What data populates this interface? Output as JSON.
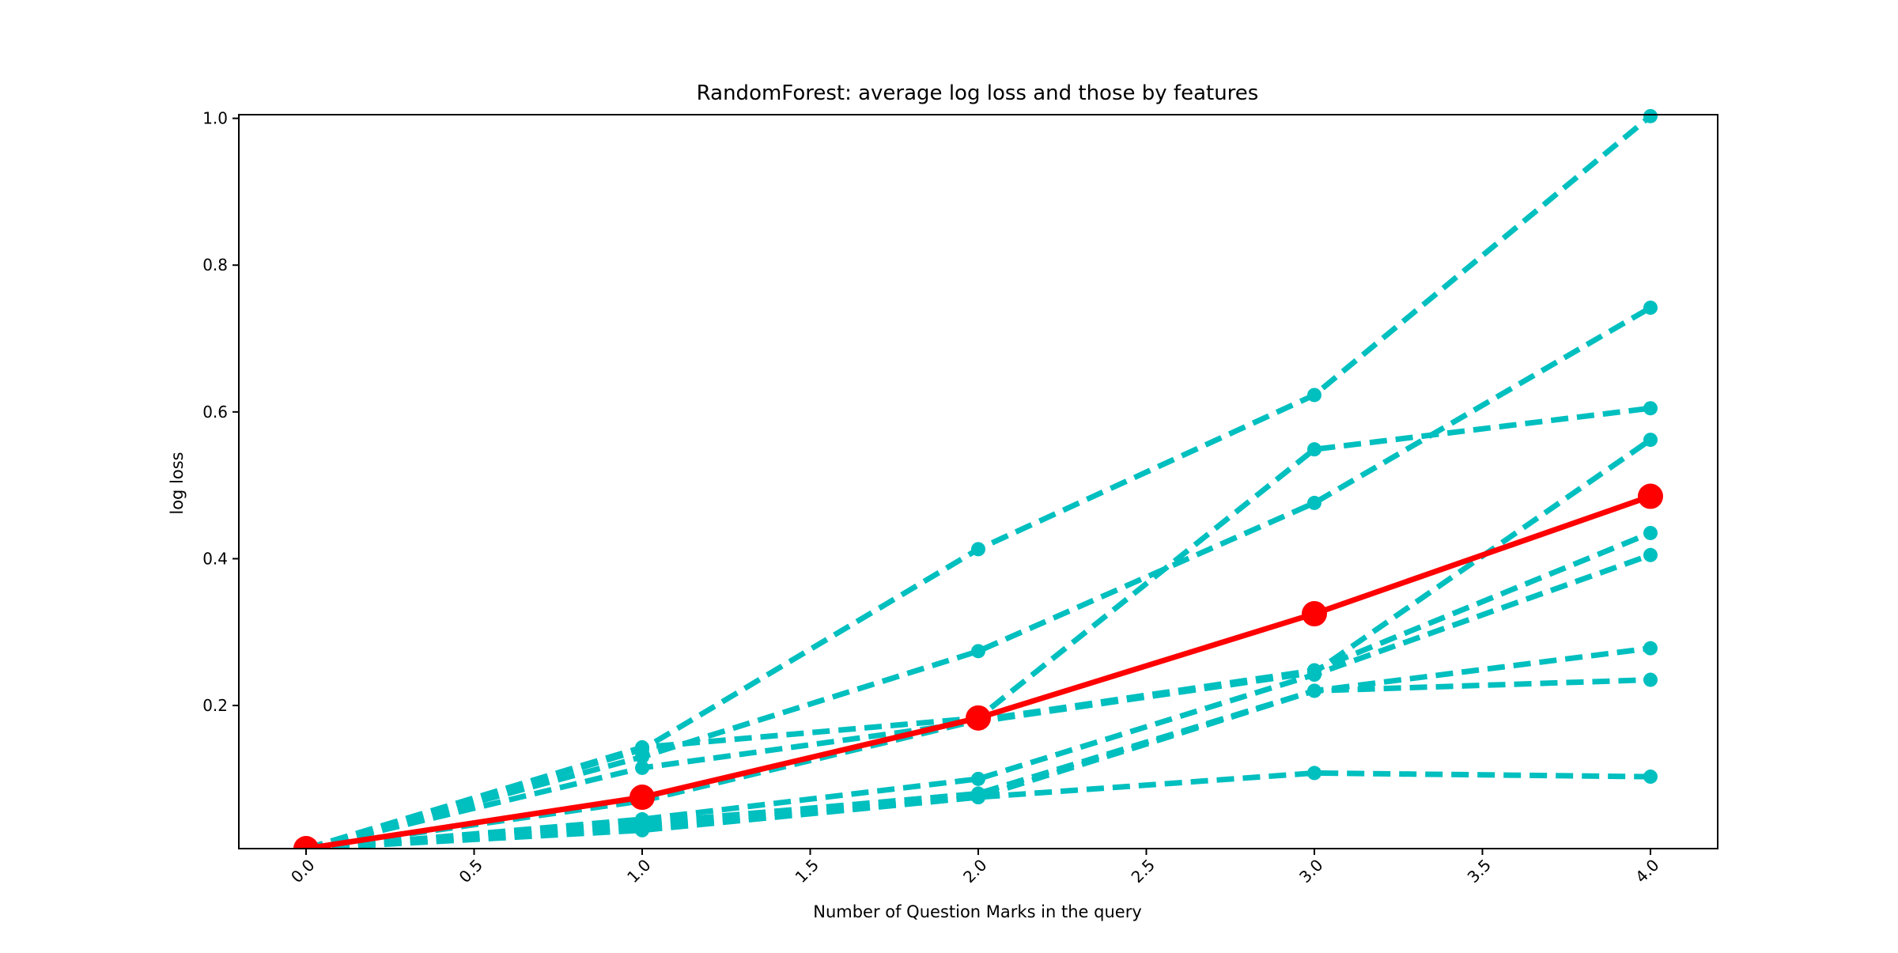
{
  "chart_data": {
    "type": "line",
    "title": "RandomForest: average log loss and those by features",
    "xlabel": "Number of Question Marks in the query",
    "ylabel": "log loss",
    "x": [
      0,
      1,
      2,
      3,
      4
    ],
    "xlim": [
      -0.2,
      4.2
    ],
    "ylim": [
      0.005,
      1.005
    ],
    "xticks": [
      "0.0",
      "0.5",
      "1.0",
      "1.5",
      "2.0",
      "2.5",
      "3.0",
      "3.5",
      "4.0"
    ],
    "xtick_values": [
      0,
      0.5,
      1,
      1.5,
      2,
      2.5,
      3,
      3.5,
      4
    ],
    "xtick_rotation_deg": 45,
    "yticks": [
      "0.2",
      "0.4",
      "0.6",
      "0.8",
      "1.0"
    ],
    "ytick_values": [
      0.2,
      0.4,
      0.6,
      0.8,
      1.0
    ],
    "grid": false,
    "legend": "none",
    "average_series": {
      "values": [
        0.005,
        0.075,
        0.183,
        0.325,
        0.485
      ],
      "color": "#ff0000",
      "style": "solid"
    },
    "feature_series": [
      {
        "values": [
          0.005,
          0.14,
          0.413,
          0.623,
          1.003
        ]
      },
      {
        "values": [
          0.005,
          0.13,
          0.274,
          0.476,
          0.742
        ]
      },
      {
        "values": [
          0.005,
          0.143,
          0.183,
          0.549,
          0.605
        ]
      },
      {
        "values": [
          0.005,
          0.115,
          0.178,
          0.245,
          0.562
        ]
      },
      {
        "values": [
          0.005,
          0.07,
          0.18,
          0.248,
          0.435
        ]
      },
      {
        "values": [
          0.005,
          0.045,
          0.1,
          0.242,
          0.405
        ]
      },
      {
        "values": [
          0.005,
          0.04,
          0.08,
          0.22,
          0.278
        ]
      },
      {
        "values": [
          0.005,
          0.035,
          0.075,
          0.22,
          0.235
        ]
      },
      {
        "values": [
          0.005,
          0.03,
          0.075,
          0.108,
          0.103
        ]
      }
    ],
    "feature_color": "#00bfbf",
    "feature_style": "dashed"
  }
}
